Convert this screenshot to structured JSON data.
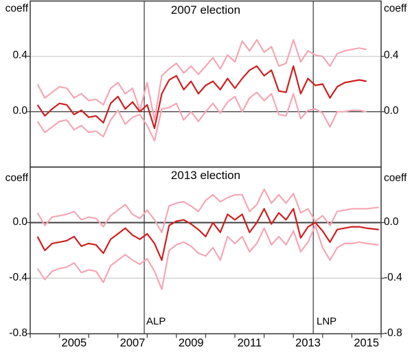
{
  "labels": {
    "unit": "coeff"
  },
  "event_lines": [
    {
      "label": "ALP",
      "year": 2007.9
    },
    {
      "label": "LNP",
      "year": 2013.68
    }
  ],
  "colors": {
    "central_line": "#cd1f1f",
    "band_line": "#f6a6b4",
    "gridline": "#cccccc",
    "axis": "#333333",
    "zero_line_top": "#1a1a1a",
    "zero_line_bottom": "#3c3c3c"
  },
  "x_axis": {
    "tick_years": [
      2004,
      2005,
      2006,
      2007,
      2008,
      2009,
      2010,
      2011,
      2012,
      2013,
      2014,
      2015,
      2016
    ],
    "labels": [
      {
        "year": 2005,
        "label": "2005"
      },
      {
        "year": 2007,
        "label": "2007"
      },
      {
        "year": 2009,
        "label": "2009"
      },
      {
        "year": 2011,
        "label": "2011"
      },
      {
        "year": 2013,
        "label": "2013"
      },
      {
        "year": 2015,
        "label": "2015"
      }
    ]
  },
  "chart_data": [
    {
      "type": "line",
      "panel": "top",
      "title": "2007 election",
      "ylabel": "coeff",
      "ylim": [
        -0.4,
        0.8
      ],
      "xlim": [
        2004,
        2016
      ],
      "yticks": [
        {
          "value": 0.4,
          "label": "0.4"
        },
        {
          "value": 0.0,
          "label": "0.0"
        }
      ],
      "gridlines": [
        0.4
      ],
      "zero_line": 0.0,
      "x": [
        2004.25,
        2004.5,
        2004.75,
        2005,
        2005.25,
        2005.5,
        2005.75,
        2006,
        2006.25,
        2006.5,
        2006.75,
        2007,
        2007.25,
        2007.5,
        2007.75,
        2008,
        2008.25,
        2008.5,
        2008.75,
        2009,
        2009.25,
        2009.5,
        2009.75,
        2010,
        2010.25,
        2010.5,
        2010.75,
        2011,
        2011.25,
        2011.5,
        2011.75,
        2012,
        2012.25,
        2012.5,
        2012.75,
        2013,
        2013.25,
        2013.5,
        2013.75,
        2014,
        2014.25,
        2014.5,
        2014.75,
        2015,
        2015.25,
        2015.5
      ],
      "series": [
        {
          "name": "coefficient",
          "role": "central",
          "values": [
            0.05,
            -0.03,
            0.02,
            0.06,
            0.05,
            -0.02,
            0.01,
            -0.04,
            -0.03,
            -0.08,
            0.06,
            0.11,
            0.02,
            0.07,
            0.0,
            0.05,
            -0.12,
            0.13,
            0.23,
            0.26,
            0.16,
            0.22,
            0.13,
            0.19,
            0.22,
            0.16,
            0.24,
            0.17,
            0.24,
            0.3,
            0.33,
            0.26,
            0.3,
            0.15,
            0.14,
            0.33,
            0.13,
            0.24,
            0.19,
            0.2,
            0.1,
            0.18,
            0.21,
            0.22,
            0.23,
            0.22
          ]
        },
        {
          "name": "upper confidence band",
          "role": "upper",
          "values": [
            0.2,
            0.1,
            0.14,
            0.18,
            0.17,
            0.1,
            0.13,
            0.08,
            0.09,
            0.05,
            0.17,
            0.21,
            0.13,
            0.17,
            0.01,
            0.21,
            -0.06,
            0.26,
            0.31,
            0.35,
            0.28,
            0.33,
            0.27,
            0.33,
            0.39,
            0.31,
            0.41,
            0.36,
            0.51,
            0.44,
            0.52,
            0.43,
            0.47,
            0.33,
            0.35,
            0.52,
            0.36,
            0.44,
            0.41,
            0.4,
            0.33,
            0.42,
            0.44,
            0.45,
            0.46,
            0.45
          ]
        },
        {
          "name": "lower confidence band",
          "role": "lower",
          "values": [
            -0.07,
            -0.15,
            -0.11,
            -0.07,
            -0.06,
            -0.13,
            -0.1,
            -0.15,
            -0.14,
            -0.18,
            -0.06,
            0.01,
            -0.09,
            -0.04,
            -0.02,
            -0.1,
            -0.21,
            0.02,
            0.03,
            0.06,
            -0.06,
            0.0,
            -0.07,
            0.0,
            0.06,
            -0.01,
            0.07,
            0.11,
            0.0,
            0.1,
            0.14,
            0.08,
            0.13,
            -0.02,
            -0.03,
            0.13,
            -0.05,
            0.01,
            0.02,
            -0.01,
            -0.11,
            0.0,
            0.0,
            0.01,
            0.01,
            0.0
          ]
        }
      ]
    },
    {
      "type": "line",
      "panel": "bottom",
      "title": "2013 election",
      "ylabel": "coeff",
      "ylim": [
        -0.8,
        0.4
      ],
      "xlim": [
        2004,
        2016
      ],
      "yticks": [
        {
          "value": 0.0,
          "label": "0.0"
        },
        {
          "value": -0.4,
          "label": "-0.4"
        },
        {
          "value": -0.8,
          "label": "-0.8"
        }
      ],
      "gridlines": [
        -0.4
      ],
      "zero_line": 0.0,
      "x": [
        2004.25,
        2004.5,
        2004.75,
        2005,
        2005.25,
        2005.5,
        2005.75,
        2006,
        2006.25,
        2006.5,
        2006.75,
        2007,
        2007.25,
        2007.5,
        2007.75,
        2008,
        2008.25,
        2008.5,
        2008.75,
        2009,
        2009.25,
        2009.5,
        2009.75,
        2010,
        2010.25,
        2010.5,
        2010.75,
        2011,
        2011.25,
        2011.5,
        2011.75,
        2012,
        2012.25,
        2012.5,
        2012.75,
        2013,
        2013.25,
        2013.5,
        2013.75,
        2014,
        2014.25,
        2014.5,
        2014.75,
        2015,
        2015.25,
        2015.5,
        2015.92
      ],
      "series": [
        {
          "name": "coefficient",
          "role": "central",
          "values": [
            -0.1,
            -0.2,
            -0.15,
            -0.14,
            -0.13,
            -0.1,
            -0.17,
            -0.15,
            -0.16,
            -0.22,
            -0.12,
            -0.08,
            -0.04,
            -0.09,
            -0.12,
            -0.08,
            -0.15,
            -0.27,
            -0.02,
            0.01,
            0.02,
            -0.01,
            -0.05,
            -0.1,
            0.0,
            -0.07,
            0.06,
            0.02,
            0.06,
            -0.07,
            0.0,
            0.1,
            -0.01,
            0.07,
            0.02,
            0.1,
            -0.11,
            -0.03,
            0.0,
            -0.06,
            -0.14,
            -0.05,
            -0.04,
            -0.03,
            -0.03,
            -0.04,
            -0.05
          ]
        },
        {
          "name": "upper confidence band",
          "role": "upper",
          "values": [
            0.07,
            -0.02,
            0.04,
            0.05,
            0.06,
            0.08,
            0.02,
            0.04,
            0.03,
            -0.03,
            0.05,
            0.09,
            0.13,
            0.06,
            0.03,
            0.09,
            0.02,
            -0.07,
            0.12,
            0.14,
            0.15,
            0.12,
            0.08,
            0.16,
            0.2,
            0.15,
            0.18,
            0.2,
            0.2,
            0.08,
            0.13,
            0.24,
            0.14,
            0.2,
            0.14,
            0.21,
            0.07,
            0.1,
            0.01,
            0.05,
            -0.02,
            0.08,
            0.09,
            0.1,
            0.1,
            0.1,
            0.11
          ]
        },
        {
          "name": "lower confidence band",
          "role": "lower",
          "values": [
            -0.33,
            -0.41,
            -0.35,
            -0.33,
            -0.32,
            -0.29,
            -0.36,
            -0.34,
            -0.35,
            -0.43,
            -0.31,
            -0.27,
            -0.23,
            -0.27,
            -0.3,
            -0.26,
            -0.35,
            -0.48,
            -0.2,
            -0.16,
            -0.14,
            -0.17,
            -0.22,
            -0.24,
            -0.18,
            -0.27,
            -0.1,
            -0.15,
            -0.1,
            -0.21,
            -0.15,
            -0.04,
            -0.16,
            -0.1,
            -0.16,
            -0.06,
            -0.21,
            -0.14,
            -0.02,
            -0.18,
            -0.27,
            -0.18,
            -0.15,
            -0.15,
            -0.14,
            -0.15,
            -0.16
          ]
        }
      ]
    }
  ]
}
